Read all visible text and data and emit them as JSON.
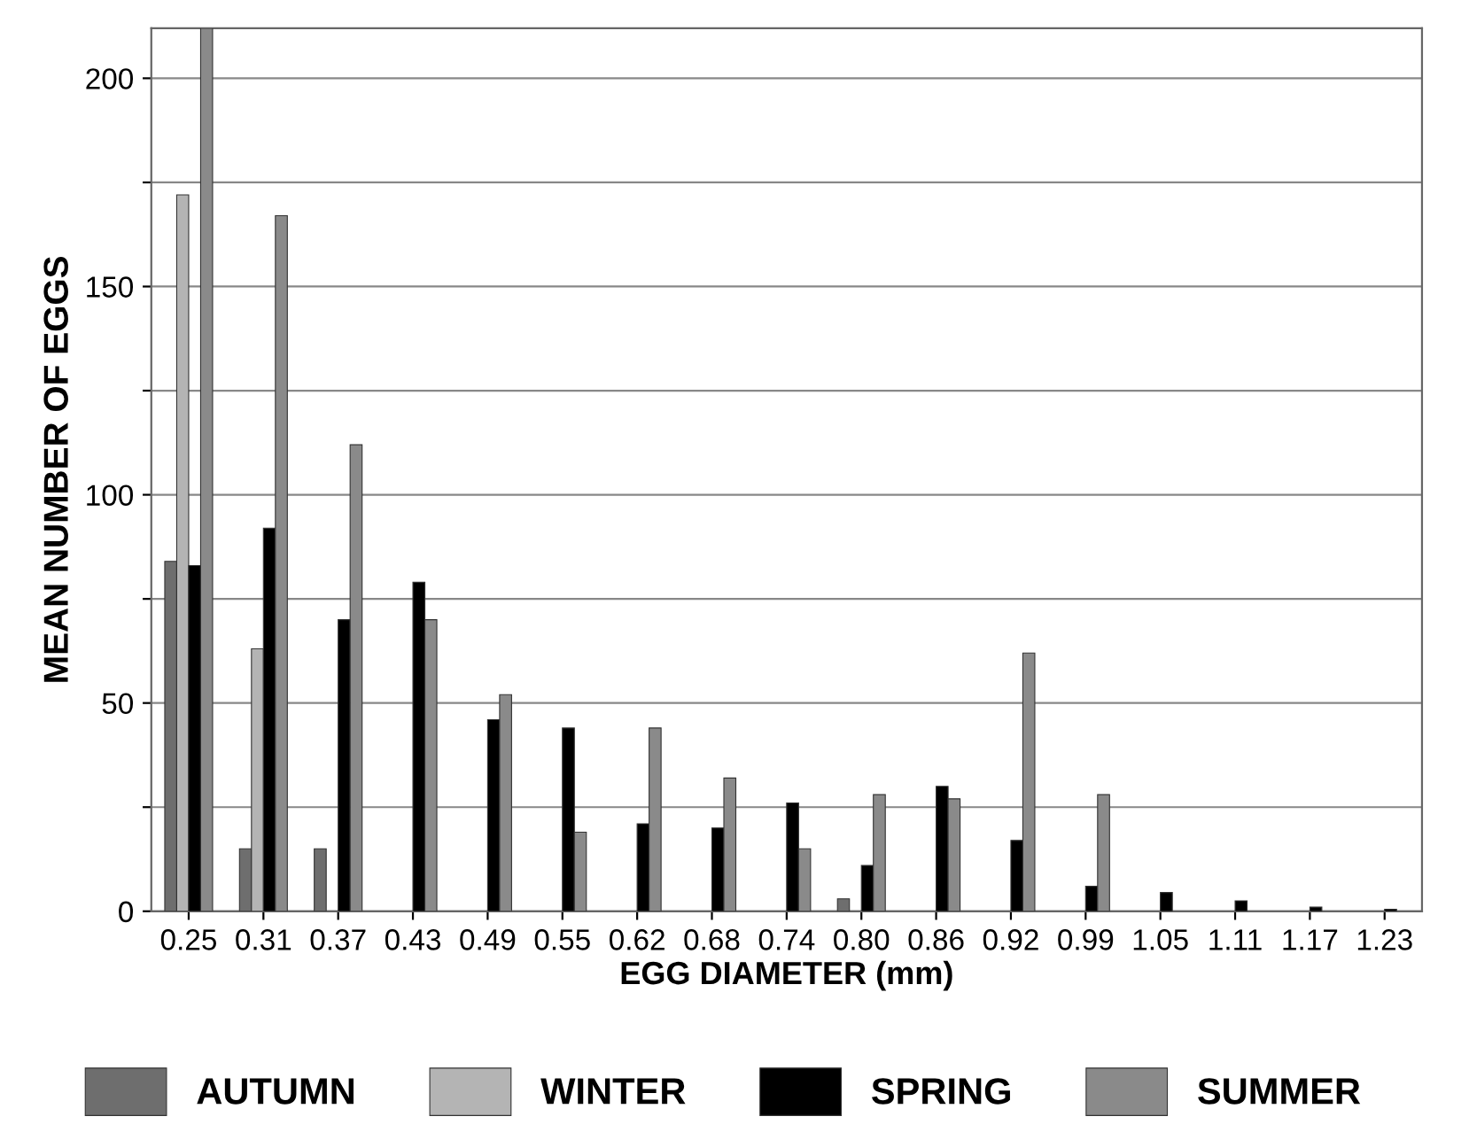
{
  "chart_data": {
    "type": "bar",
    "xlabel": "EGG DIAMETER (mm)",
    "ylabel": "MEAN NUMBER OF EGGS",
    "categories": [
      "0.25",
      "0.31",
      "0.37",
      "0.43",
      "0.49",
      "0.55",
      "0.62",
      "0.68",
      "0.74",
      "0.80",
      "0.86",
      "0.92",
      "0.99",
      "1.05",
      "1.11",
      "1.17",
      "1.23"
    ],
    "series": [
      {
        "name": "AUTUMN",
        "color": "#6e6e6e",
        "values": [
          84,
          15,
          15,
          null,
          null,
          null,
          null,
          null,
          null,
          3,
          null,
          null,
          null,
          null,
          null,
          null,
          null
        ]
      },
      {
        "name": "WINTER",
        "color": "#b4b4b4",
        "values": [
          172,
          63,
          null,
          null,
          null,
          null,
          null,
          null,
          null,
          null,
          null,
          null,
          null,
          null,
          null,
          null,
          null
        ]
      },
      {
        "name": "SPRING",
        "color": "#000000",
        "values": [
          83,
          92,
          70,
          79,
          46,
          44,
          21,
          20,
          26,
          11,
          30,
          17,
          6,
          4.5,
          2.5,
          1,
          0.5
        ]
      },
      {
        "name": "SUMMER",
        "color": "#8a8a8a",
        "values": [
          212,
          167,
          112,
          70,
          52,
          19,
          44,
          32,
          15,
          28,
          27,
          62,
          28,
          null,
          null,
          null,
          null
        ]
      }
    ],
    "ylim": [
      0,
      212
    ],
    "yticks": [
      0,
      {
        "value": 25,
        "label": null
      },
      50,
      {
        "value": 75,
        "label": null
      },
      100,
      {
        "value": 125,
        "label": null
      },
      150,
      {
        "value": 175,
        "label": null
      },
      200
    ],
    "grid": "y",
    "legend": "bottom"
  }
}
